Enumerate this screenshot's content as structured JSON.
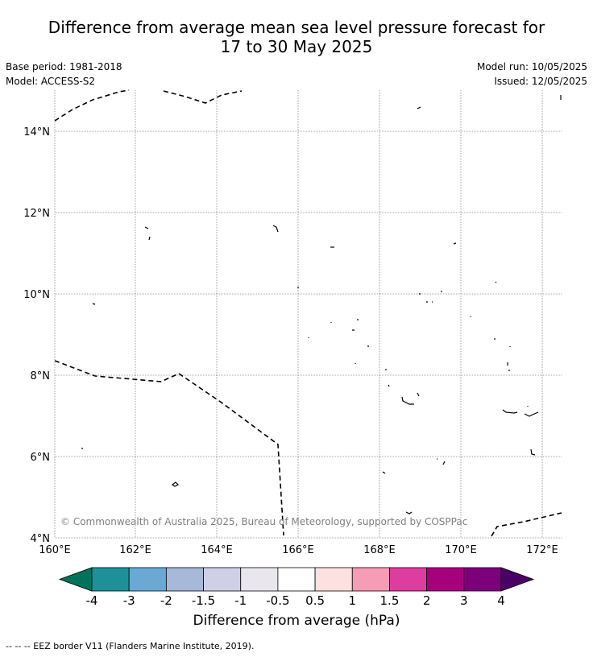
{
  "title_line1": "Difference from average mean sea level pressure forecast for",
  "title_line2": "17 to 30 May 2025",
  "meta": {
    "base_period": "Base period: 1981-2018",
    "model": "Model: ACCESS-S2",
    "model_run": "Model run: 10/05/2025",
    "issued": "Issued: 12/05/2025"
  },
  "map": {
    "lon_ticks": [
      "160°E",
      "162°E",
      "164°E",
      "166°E",
      "168°E",
      "170°E",
      "172°E"
    ],
    "lat_ticks": [
      "14°N",
      "12°N",
      "10°N",
      "8°N",
      "6°N",
      "4°N"
    ],
    "copyright": "© Commonwealth of Australia 2025, Bureau of Meteorology, supported by COSPPac"
  },
  "colorbar": {
    "title": "Difference from average (hPa)",
    "labels": [
      "-4",
      "-3",
      "-2",
      "-1.5",
      "-1",
      "-0.5",
      "0.5",
      "1",
      "1.5",
      "2",
      "3",
      "4"
    ],
    "colors": [
      "#1e9098",
      "#6aa9d4",
      "#a6b9d9",
      "#cfd0e6",
      "#e9e6ee",
      "#ffffff",
      "#fde0e0",
      "#f69cb6",
      "#dd3d9e",
      "#a7007d",
      "#7c0079"
    ],
    "under_color": "#00735d",
    "over_color": "#4a0067"
  },
  "footer": "--  --  -- EEZ border V11 (Flanders Marine Institute, 2019)."
}
